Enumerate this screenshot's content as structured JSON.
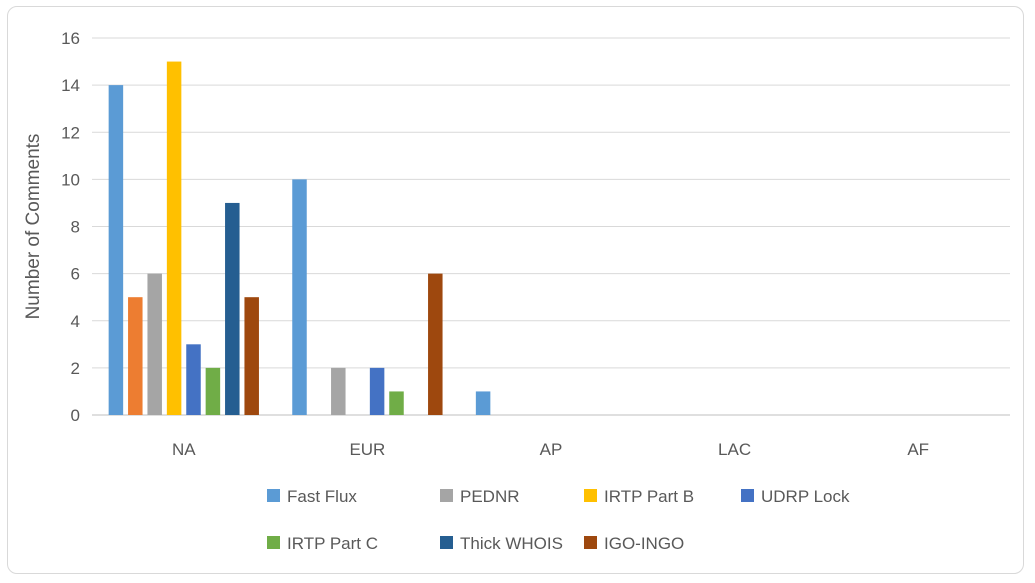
{
  "chart_data": {
    "type": "bar",
    "title": "",
    "xlabel": "",
    "ylabel": "Number of Comments",
    "ylim": [
      0,
      16
    ],
    "yticks": [
      0,
      2,
      4,
      6,
      8,
      10,
      12,
      14,
      16
    ],
    "grid": true,
    "legend_position": "bottom",
    "categories": [
      "NA",
      "EUR",
      "AP",
      "LAC",
      "AF"
    ],
    "series": [
      {
        "name": "Fast Flux",
        "color": "#5b9bd5",
        "values": [
          14,
          10,
          1,
          0,
          0
        ]
      },
      {
        "name": "",
        "color": "#ed7d31",
        "values": [
          5,
          0,
          0,
          0,
          0
        ]
      },
      {
        "name": "PEDNR",
        "color": "#a5a5a5",
        "values": [
          6,
          2,
          0,
          0,
          0
        ]
      },
      {
        "name": "IRTP Part B",
        "color": "#ffc000",
        "values": [
          15,
          0,
          0,
          0,
          0
        ]
      },
      {
        "name": "UDRP Lock",
        "color": "#4472c4",
        "values": [
          3,
          2,
          0,
          0,
          0
        ]
      },
      {
        "name": "IRTP Part C",
        "color": "#70ad47",
        "values": [
          2,
          1,
          0,
          0,
          0
        ]
      },
      {
        "name": "Thick WHOIS",
        "color": "#255e91",
        "values": [
          9,
          0,
          0,
          0,
          0
        ]
      },
      {
        "name": "IGO-INGO",
        "color": "#9e480e",
        "values": [
          5,
          6,
          0,
          0,
          0
        ]
      }
    ]
  }
}
